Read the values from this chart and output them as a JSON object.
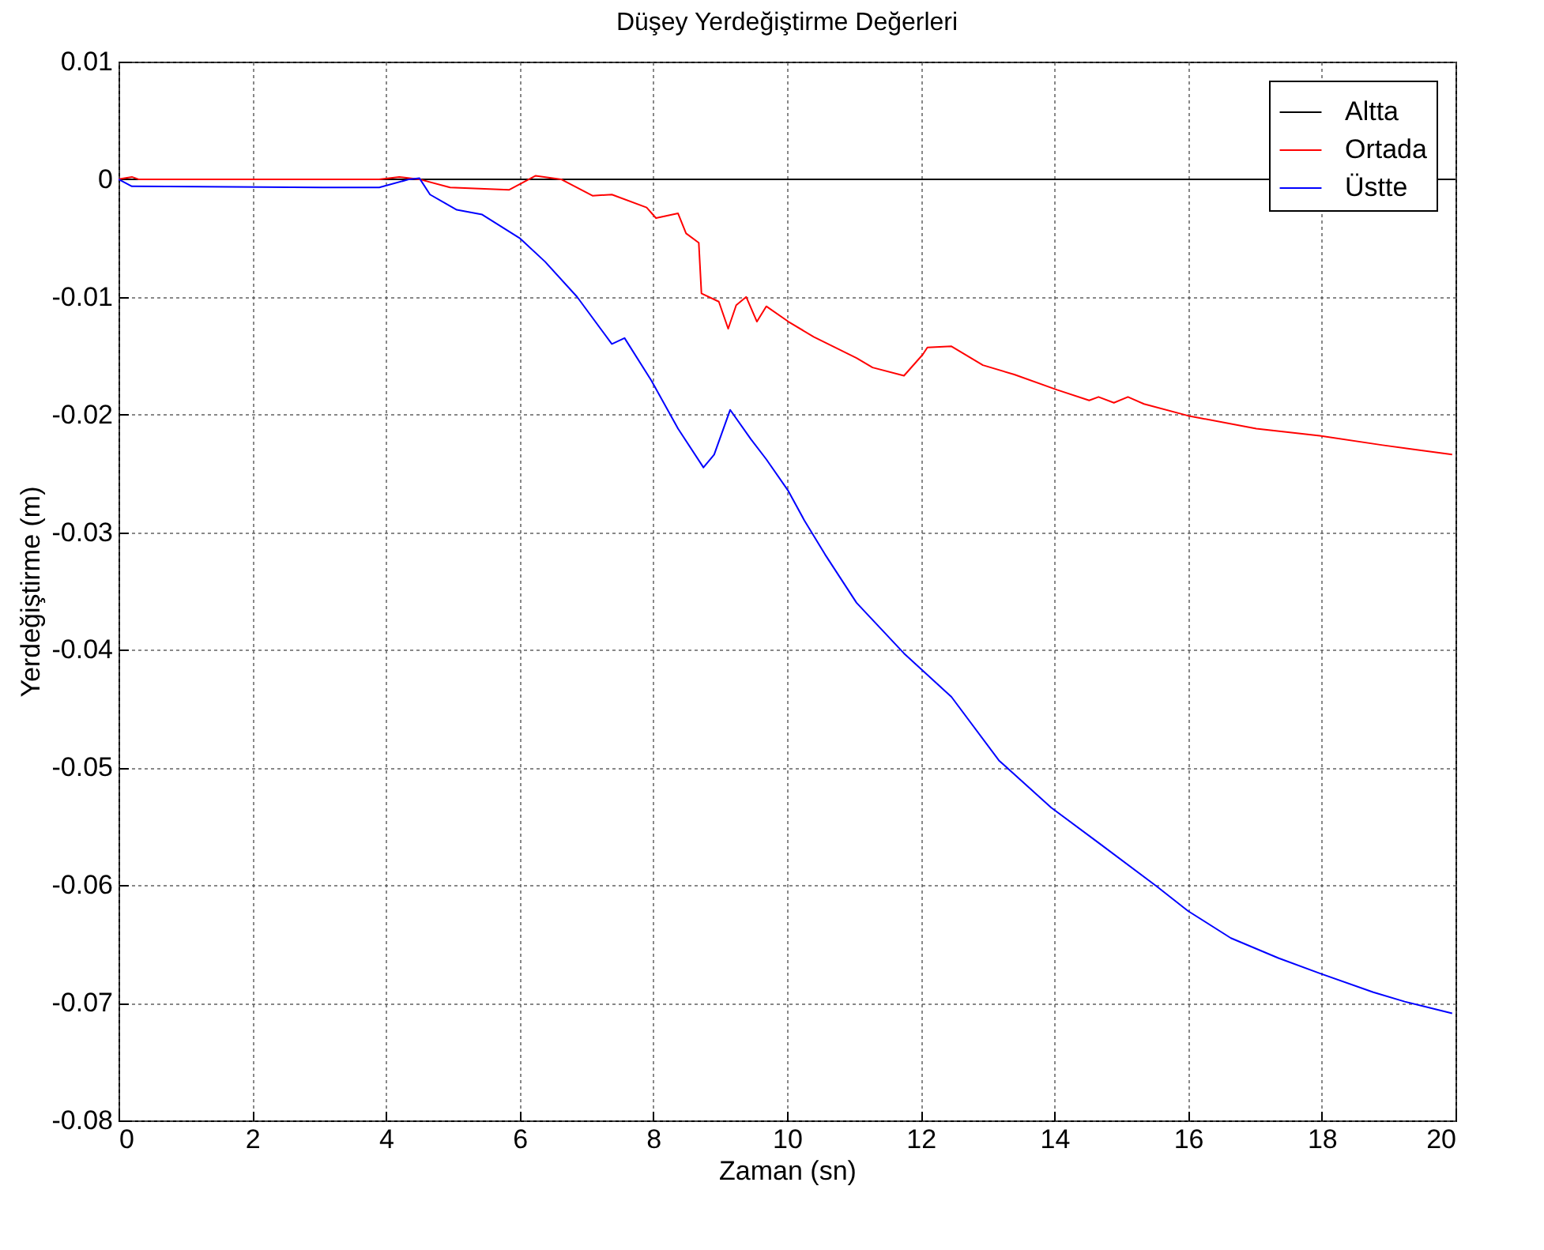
{
  "chart_data": {
    "type": "line",
    "title": "Düşey Yerdeğiştirme Değerleri",
    "xlabel": "Zaman (sn)",
    "ylabel": "Yerdeğiştirme (m)",
    "xlim": [
      0,
      20
    ],
    "xticks": [
      0,
      2,
      4,
      6,
      8,
      10,
      12,
      14,
      16,
      18,
      20
    ],
    "ylim": [
      -0.08,
      0.01
    ],
    "yticks": [
      -0.08,
      -0.07,
      -0.06,
      -0.05,
      -0.04,
      -0.03,
      -0.02,
      -0.01,
      0,
      0.01
    ],
    "grid": true,
    "legend": "top right",
    "line_style": "solid",
    "series": [
      {
        "name": "Altta",
        "color": "#000000",
        "x": [
          0,
          20
        ],
        "values": [
          0,
          0
        ]
      },
      {
        "name": "Ortada",
        "color": "#ff0000",
        "x": [
          0,
          0.2,
          0.3,
          3.9,
          4.2,
          4.5,
          4.96,
          5.84,
          6.24,
          6.62,
          7.09,
          7.38,
          7.9,
          8.04,
          8.37,
          8.49,
          8.68,
          8.72,
          8.98,
          9.12,
          9.24,
          9.39,
          9.55,
          9.69,
          10.02,
          10.4,
          11.04,
          11.28,
          11.75,
          12.03,
          12.1,
          12.46,
          12.93,
          13.4,
          14.04,
          14.52,
          14.66,
          14.89,
          15.1,
          15.34,
          16.0,
          17.02,
          17.97,
          18.91,
          19.95
        ],
        "values": [
          0,
          0.0002,
          0,
          0,
          0.0002,
          0,
          -0.0007,
          -0.0009,
          0.0003,
          0,
          -0.0014,
          -0.0013,
          -0.0024,
          -0.0033,
          -0.0029,
          -0.0046,
          -0.0054,
          -0.0097,
          -0.0104,
          -0.0127,
          -0.0107,
          -0.01,
          -0.0121,
          -0.0108,
          -0.0121,
          -0.0134,
          -0.0152,
          -0.016,
          -0.0167,
          -0.0149,
          -0.0143,
          -0.0142,
          -0.0158,
          -0.0166,
          -0.0179,
          -0.0188,
          -0.0185,
          -0.019,
          -0.0185,
          -0.0191,
          -0.0201,
          -0.0212,
          -0.0218,
          -0.0226,
          -0.0234
        ]
      },
      {
        "name": "Üstte",
        "color": "#0000ff",
        "x": [
          0,
          0.2,
          3.05,
          3.9,
          4.35,
          4.5,
          4.66,
          5.06,
          5.44,
          6.0,
          6.38,
          6.86,
          7.38,
          7.57,
          7.97,
          8.37,
          8.75,
          8.91,
          9.15,
          9.46,
          9.69,
          10.02,
          10.26,
          10.57,
          11.04,
          11.75,
          12.46,
          13.17,
          13.95,
          14.66,
          15.53,
          16.0,
          16.64,
          17.35,
          17.97,
          18.77,
          19.24,
          19.95
        ],
        "values": [
          0,
          -0.0006,
          -0.0007,
          -0.0007,
          0,
          0.0001,
          -0.0013,
          -0.0026,
          -0.003,
          -0.005,
          -0.007,
          -0.01,
          -0.014,
          -0.0135,
          -0.0171,
          -0.0212,
          -0.0245,
          -0.0234,
          -0.0196,
          -0.0221,
          -0.0238,
          -0.0265,
          -0.029,
          -0.0319,
          -0.036,
          -0.0403,
          -0.044,
          -0.0494,
          -0.0534,
          -0.0564,
          -0.0601,
          -0.0622,
          -0.0645,
          -0.0662,
          -0.0675,
          -0.0691,
          -0.0699,
          -0.0709
        ]
      }
    ]
  }
}
